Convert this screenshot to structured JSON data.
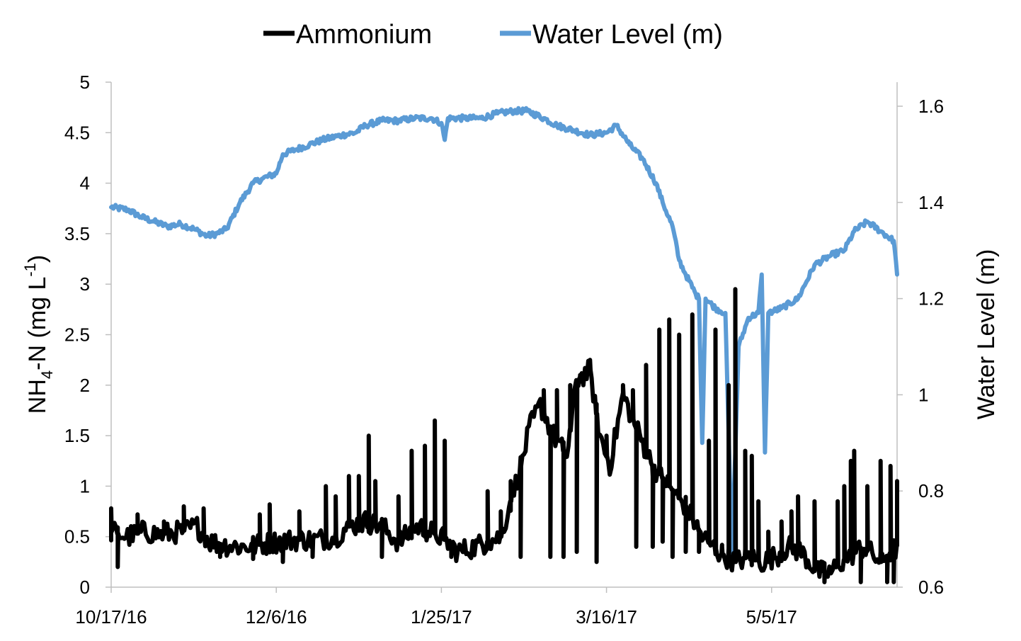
{
  "chart_data": {
    "type": "line",
    "x_axis": {
      "type": "date",
      "tick_labels": [
        "10/17/16",
        "12/6/16",
        "1/25/17",
        "3/16/17",
        "5/5/17"
      ],
      "range": [
        "2016-10-17",
        "2017-06-12"
      ]
    },
    "y_left": {
      "label_main": "NH",
      "label_sub": "4",
      "label_mid": "-N (mg L",
      "label_sup": "-1",
      "label_end": ")",
      "ylim": [
        0,
        5
      ],
      "ticks": [
        0,
        0.5,
        1,
        1.5,
        2,
        2.5,
        3,
        3.5,
        4,
        4.5,
        5
      ],
      "tick_labels": [
        "0",
        "0.5",
        "1",
        "1.5",
        "2",
        "2.5",
        "3",
        "3.5",
        "4",
        "4.5",
        "5"
      ]
    },
    "y_right": {
      "label": "Water Level (m)",
      "ylim": [
        0.6,
        1.65
      ],
      "ticks": [
        0.6,
        0.8,
        1.0,
        1.2,
        1.4,
        1.6
      ],
      "tick_labels": [
        "0.6",
        "0.8",
        "1",
        "1.2",
        "1.4",
        "1.6"
      ]
    },
    "legend": {
      "placement": "top-center",
      "entries": [
        {
          "label": "Ammonium",
          "color": "#000000"
        },
        {
          "label": "Water Level (m)",
          "color": "#5b9bd5"
        }
      ]
    },
    "grid": false,
    "series": [
      {
        "name": "Ammonium",
        "axis": "left",
        "color": "#000000",
        "base": [
          [
            "2016-10-17",
            0.55
          ],
          [
            "2016-10-22",
            0.5
          ],
          [
            "2016-10-27",
            0.55
          ],
          [
            "2016-11-01",
            0.52
          ],
          [
            "2016-11-07",
            0.55
          ],
          [
            "2016-11-12",
            0.6
          ],
          [
            "2016-11-16",
            0.45
          ],
          [
            "2016-11-20",
            0.42
          ],
          [
            "2016-11-26",
            0.4
          ],
          [
            "2016-12-01",
            0.42
          ],
          [
            "2016-12-06",
            0.45
          ],
          [
            "2016-12-12",
            0.47
          ],
          [
            "2016-12-18",
            0.47
          ],
          [
            "2016-12-24",
            0.5
          ],
          [
            "2016-12-28",
            0.6
          ],
          [
            "2017-01-02",
            0.65
          ],
          [
            "2017-01-07",
            0.6
          ],
          [
            "2017-01-12",
            0.45
          ],
          [
            "2017-01-18",
            0.6
          ],
          [
            "2017-01-25",
            0.5
          ],
          [
            "2017-01-30",
            0.35
          ],
          [
            "2017-02-04",
            0.4
          ],
          [
            "2017-02-08",
            0.45
          ],
          [
            "2017-02-12",
            0.5
          ],
          [
            "2017-02-15",
            0.85
          ],
          [
            "2017-02-18",
            1.2
          ],
          [
            "2017-02-21",
            1.6
          ],
          [
            "2017-02-24",
            1.8
          ],
          [
            "2017-02-28",
            1.5
          ],
          [
            "2017-03-04",
            1.3
          ],
          [
            "2017-03-07",
            2.05
          ],
          [
            "2017-03-11",
            2.15
          ],
          [
            "2017-03-14",
            1.5
          ],
          [
            "2017-03-17",
            1.2
          ],
          [
            "2017-03-21",
            1.9
          ],
          [
            "2017-03-26",
            1.5
          ],
          [
            "2017-03-30",
            1.2
          ],
          [
            "2017-04-04",
            1.0
          ],
          [
            "2017-04-09",
            0.8
          ],
          [
            "2017-04-14",
            0.5
          ],
          [
            "2017-04-19",
            0.35
          ],
          [
            "2017-04-24",
            0.25
          ],
          [
            "2017-04-28",
            0.3
          ],
          [
            "2017-05-02",
            0.25
          ],
          [
            "2017-05-06",
            0.3
          ],
          [
            "2017-05-10",
            0.4
          ],
          [
            "2017-05-14",
            0.35
          ],
          [
            "2017-05-19",
            0.15
          ],
          [
            "2017-05-23",
            0.15
          ],
          [
            "2017-05-28",
            0.3
          ],
          [
            "2017-06-02",
            0.4
          ],
          [
            "2017-06-07",
            0.25
          ],
          [
            "2017-06-12",
            0.4
          ]
        ],
        "spikes": [
          [
            "2016-10-17",
            0.78
          ],
          [
            "2016-10-19",
            0.2
          ],
          [
            "2016-10-25",
            0.72
          ],
          [
            "2016-11-02",
            0.65
          ],
          [
            "2016-11-08",
            0.8
          ],
          [
            "2016-11-14",
            0.78
          ],
          [
            "2016-11-19",
            0.3
          ],
          [
            "2016-11-29",
            0.28
          ],
          [
            "2016-12-01",
            0.72
          ],
          [
            "2016-12-04",
            0.82
          ],
          [
            "2016-12-08",
            0.25
          ],
          [
            "2016-12-13",
            0.75
          ],
          [
            "2016-12-17",
            0.3
          ],
          [
            "2016-12-21",
            1.0
          ],
          [
            "2016-12-24",
            0.9
          ],
          [
            "2016-12-28",
            1.1
          ],
          [
            "2016-12-31",
            1.1
          ],
          [
            "2017-01-03",
            1.5
          ],
          [
            "2017-01-05",
            1.05
          ],
          [
            "2017-01-07",
            0.3
          ],
          [
            "2017-01-12",
            0.9
          ],
          [
            "2017-01-16",
            1.35
          ],
          [
            "2017-01-20",
            1.4
          ],
          [
            "2017-01-23",
            1.65
          ],
          [
            "2017-01-26",
            1.45
          ],
          [
            "2017-01-28",
            0.3
          ],
          [
            "2017-02-08",
            0.95
          ],
          [
            "2017-02-12",
            0.75
          ],
          [
            "2017-02-15",
            1.05
          ],
          [
            "2017-02-18",
            0.3
          ],
          [
            "2017-02-25",
            1.95
          ],
          [
            "2017-02-27",
            0.3
          ],
          [
            "2017-03-01",
            1.95
          ],
          [
            "2017-03-03",
            0.3
          ],
          [
            "2017-03-05",
            2.0
          ],
          [
            "2017-03-07",
            0.35
          ],
          [
            "2017-03-08",
            2.1
          ],
          [
            "2017-03-11",
            2.25
          ],
          [
            "2017-03-13",
            0.25
          ],
          [
            "2017-03-16",
            1.5
          ],
          [
            "2017-03-21",
            2.0
          ],
          [
            "2017-03-24",
            1.95
          ],
          [
            "2017-03-25",
            0.4
          ],
          [
            "2017-03-28",
            2.2
          ],
          [
            "2017-03-30",
            0.4
          ],
          [
            "2017-04-01",
            2.55
          ],
          [
            "2017-04-02",
            0.45
          ],
          [
            "2017-04-04",
            2.65
          ],
          [
            "2017-04-05",
            0.3
          ],
          [
            "2017-04-07",
            2.5
          ],
          [
            "2017-04-09",
            0.35
          ],
          [
            "2017-04-11",
            2.7
          ],
          [
            "2017-04-13",
            0.35
          ],
          [
            "2017-04-16",
            1.45
          ],
          [
            "2017-04-18",
            2.55
          ],
          [
            "2017-04-20",
            0.4
          ],
          [
            "2017-04-22",
            2.0
          ],
          [
            "2017-04-24",
            2.95
          ],
          [
            "2017-04-27",
            1.35
          ],
          [
            "2017-04-29",
            1.3
          ],
          [
            "2017-05-01",
            0.85
          ],
          [
            "2017-05-04",
            0.55
          ],
          [
            "2017-05-08",
            0.65
          ],
          [
            "2017-05-11",
            0.75
          ],
          [
            "2017-05-13",
            0.9
          ],
          [
            "2017-05-18",
            0.85
          ],
          [
            "2017-05-21",
            0.05
          ],
          [
            "2017-05-25",
            0.85
          ],
          [
            "2017-05-27",
            1.0
          ],
          [
            "2017-05-29",
            1.25
          ],
          [
            "2017-05-30",
            1.35
          ],
          [
            "2017-06-01",
            0.05
          ],
          [
            "2017-06-03",
            1.0
          ],
          [
            "2017-06-07",
            1.25
          ],
          [
            "2017-06-09",
            0.05
          ],
          [
            "2017-06-10",
            1.2
          ],
          [
            "2017-06-11",
            0.05
          ],
          [
            "2017-06-12",
            1.05
          ]
        ]
      },
      {
        "name": "Water Level (m)",
        "axis": "right",
        "color": "#5b9bd5",
        "points": [
          [
            "2016-10-17",
            1.39
          ],
          [
            "2016-10-22",
            1.385
          ],
          [
            "2016-10-26",
            1.37
          ],
          [
            "2016-10-30",
            1.36
          ],
          [
            "2016-11-03",
            1.35
          ],
          [
            "2016-11-07",
            1.355
          ],
          [
            "2016-11-11",
            1.345
          ],
          [
            "2016-11-15",
            1.33
          ],
          [
            "2016-11-18",
            1.335
          ],
          [
            "2016-11-21",
            1.345
          ],
          [
            "2016-11-25",
            1.4
          ],
          [
            "2016-11-29",
            1.44
          ],
          [
            "2016-12-02",
            1.45
          ],
          [
            "2016-12-06",
            1.46
          ],
          [
            "2016-12-08",
            1.5
          ],
          [
            "2016-12-12",
            1.51
          ],
          [
            "2016-12-16",
            1.52
          ],
          [
            "2016-12-20",
            1.53
          ],
          [
            "2016-12-26",
            1.54
          ],
          [
            "2016-12-30",
            1.545
          ],
          [
            "2017-01-02",
            1.56
          ],
          [
            "2017-01-07",
            1.57
          ],
          [
            "2017-01-12",
            1.57
          ],
          [
            "2017-01-17",
            1.575
          ],
          [
            "2017-01-22",
            1.575
          ],
          [
            "2017-01-25",
            1.565
          ],
          [
            "2017-01-26",
            1.53
          ],
          [
            "2017-01-27",
            1.575
          ],
          [
            "2017-02-01",
            1.575
          ],
          [
            "2017-02-06",
            1.575
          ],
          [
            "2017-02-11",
            1.585
          ],
          [
            "2017-02-16",
            1.59
          ],
          [
            "2017-02-20",
            1.59
          ],
          [
            "2017-02-25",
            1.575
          ],
          [
            "2017-03-01",
            1.56
          ],
          [
            "2017-03-06",
            1.55
          ],
          [
            "2017-03-11",
            1.54
          ],
          [
            "2017-03-16",
            1.545
          ],
          [
            "2017-03-19",
            1.56
          ],
          [
            "2017-03-23",
            1.52
          ],
          [
            "2017-03-27",
            1.49
          ],
          [
            "2017-03-31",
            1.44
          ],
          [
            "2017-04-02",
            1.4
          ],
          [
            "2017-04-05",
            1.35
          ],
          [
            "2017-04-07",
            1.28
          ],
          [
            "2017-04-09",
            1.25
          ],
          [
            "2017-04-12",
            1.21
          ],
          [
            "2017-04-13",
            1.2
          ],
          [
            "2017-04-14",
            0.9
          ],
          [
            "2017-04-15",
            1.2
          ],
          [
            "2017-04-18",
            1.18
          ],
          [
            "2017-04-21",
            1.17
          ],
          [
            "2017-04-23",
            0.66
          ],
          [
            "2017-04-25",
            1.1
          ],
          [
            "2017-04-28",
            1.16
          ],
          [
            "2017-05-01",
            1.17
          ],
          [
            "2017-05-02",
            1.25
          ],
          [
            "2017-05-03",
            0.88
          ],
          [
            "2017-05-04",
            1.17
          ],
          [
            "2017-05-08",
            1.18
          ],
          [
            "2017-05-13",
            1.2
          ],
          [
            "2017-05-18",
            1.27
          ],
          [
            "2017-05-23",
            1.29
          ],
          [
            "2017-05-27",
            1.3
          ],
          [
            "2017-05-30",
            1.34
          ],
          [
            "2017-06-03",
            1.36
          ],
          [
            "2017-06-07",
            1.34
          ],
          [
            "2017-06-11",
            1.32
          ],
          [
            "2017-06-12",
            1.25
          ]
        ]
      }
    ]
  }
}
